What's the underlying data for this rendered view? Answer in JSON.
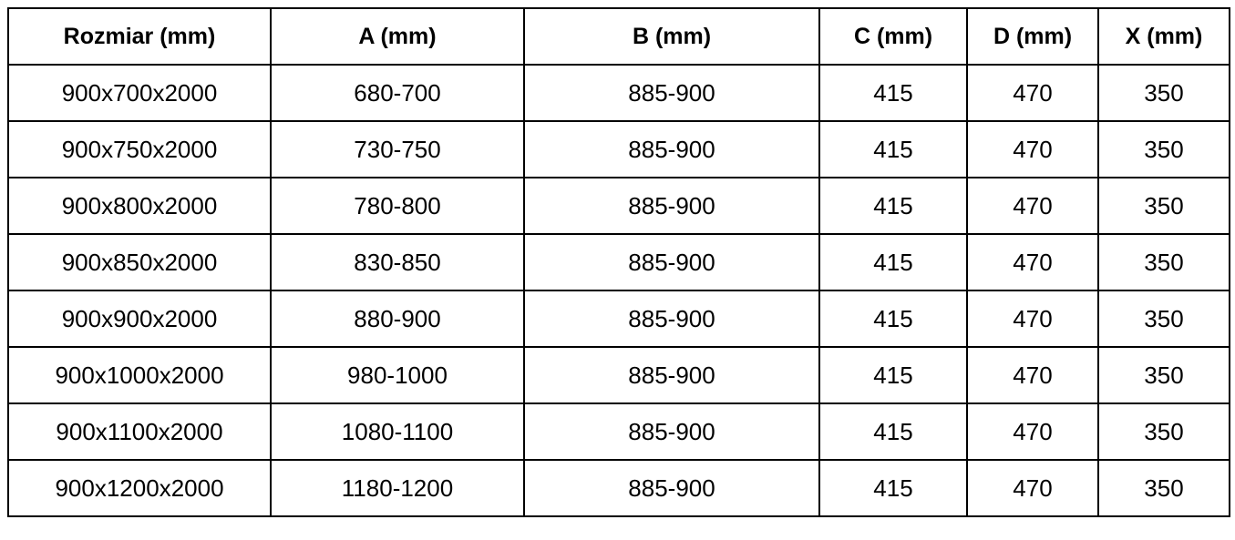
{
  "table": {
    "headers": [
      "Rozmiar (mm)",
      "A (mm)",
      "B (mm)",
      "C (mm)",
      "D (mm)",
      "X (mm)"
    ],
    "rows": [
      [
        "900x700x2000",
        "680-700",
        "885-900",
        "415",
        "470",
        "350"
      ],
      [
        "900x750x2000",
        "730-750",
        "885-900",
        "415",
        "470",
        "350"
      ],
      [
        "900x800x2000",
        "780-800",
        "885-900",
        "415",
        "470",
        "350"
      ],
      [
        "900x850x2000",
        "830-850",
        "885-900",
        "415",
        "470",
        "350"
      ],
      [
        "900x900x2000",
        "880-900",
        "885-900",
        "415",
        "470",
        "350"
      ],
      [
        "900x1000x2000",
        "980-1000",
        "885-900",
        "415",
        "470",
        "350"
      ],
      [
        "900x1100x2000",
        "1080-1100",
        "885-900",
        "415",
        "470",
        "350"
      ],
      [
        "900x1200x2000",
        "1180-1200",
        "885-900",
        "415",
        "470",
        "350"
      ]
    ]
  }
}
